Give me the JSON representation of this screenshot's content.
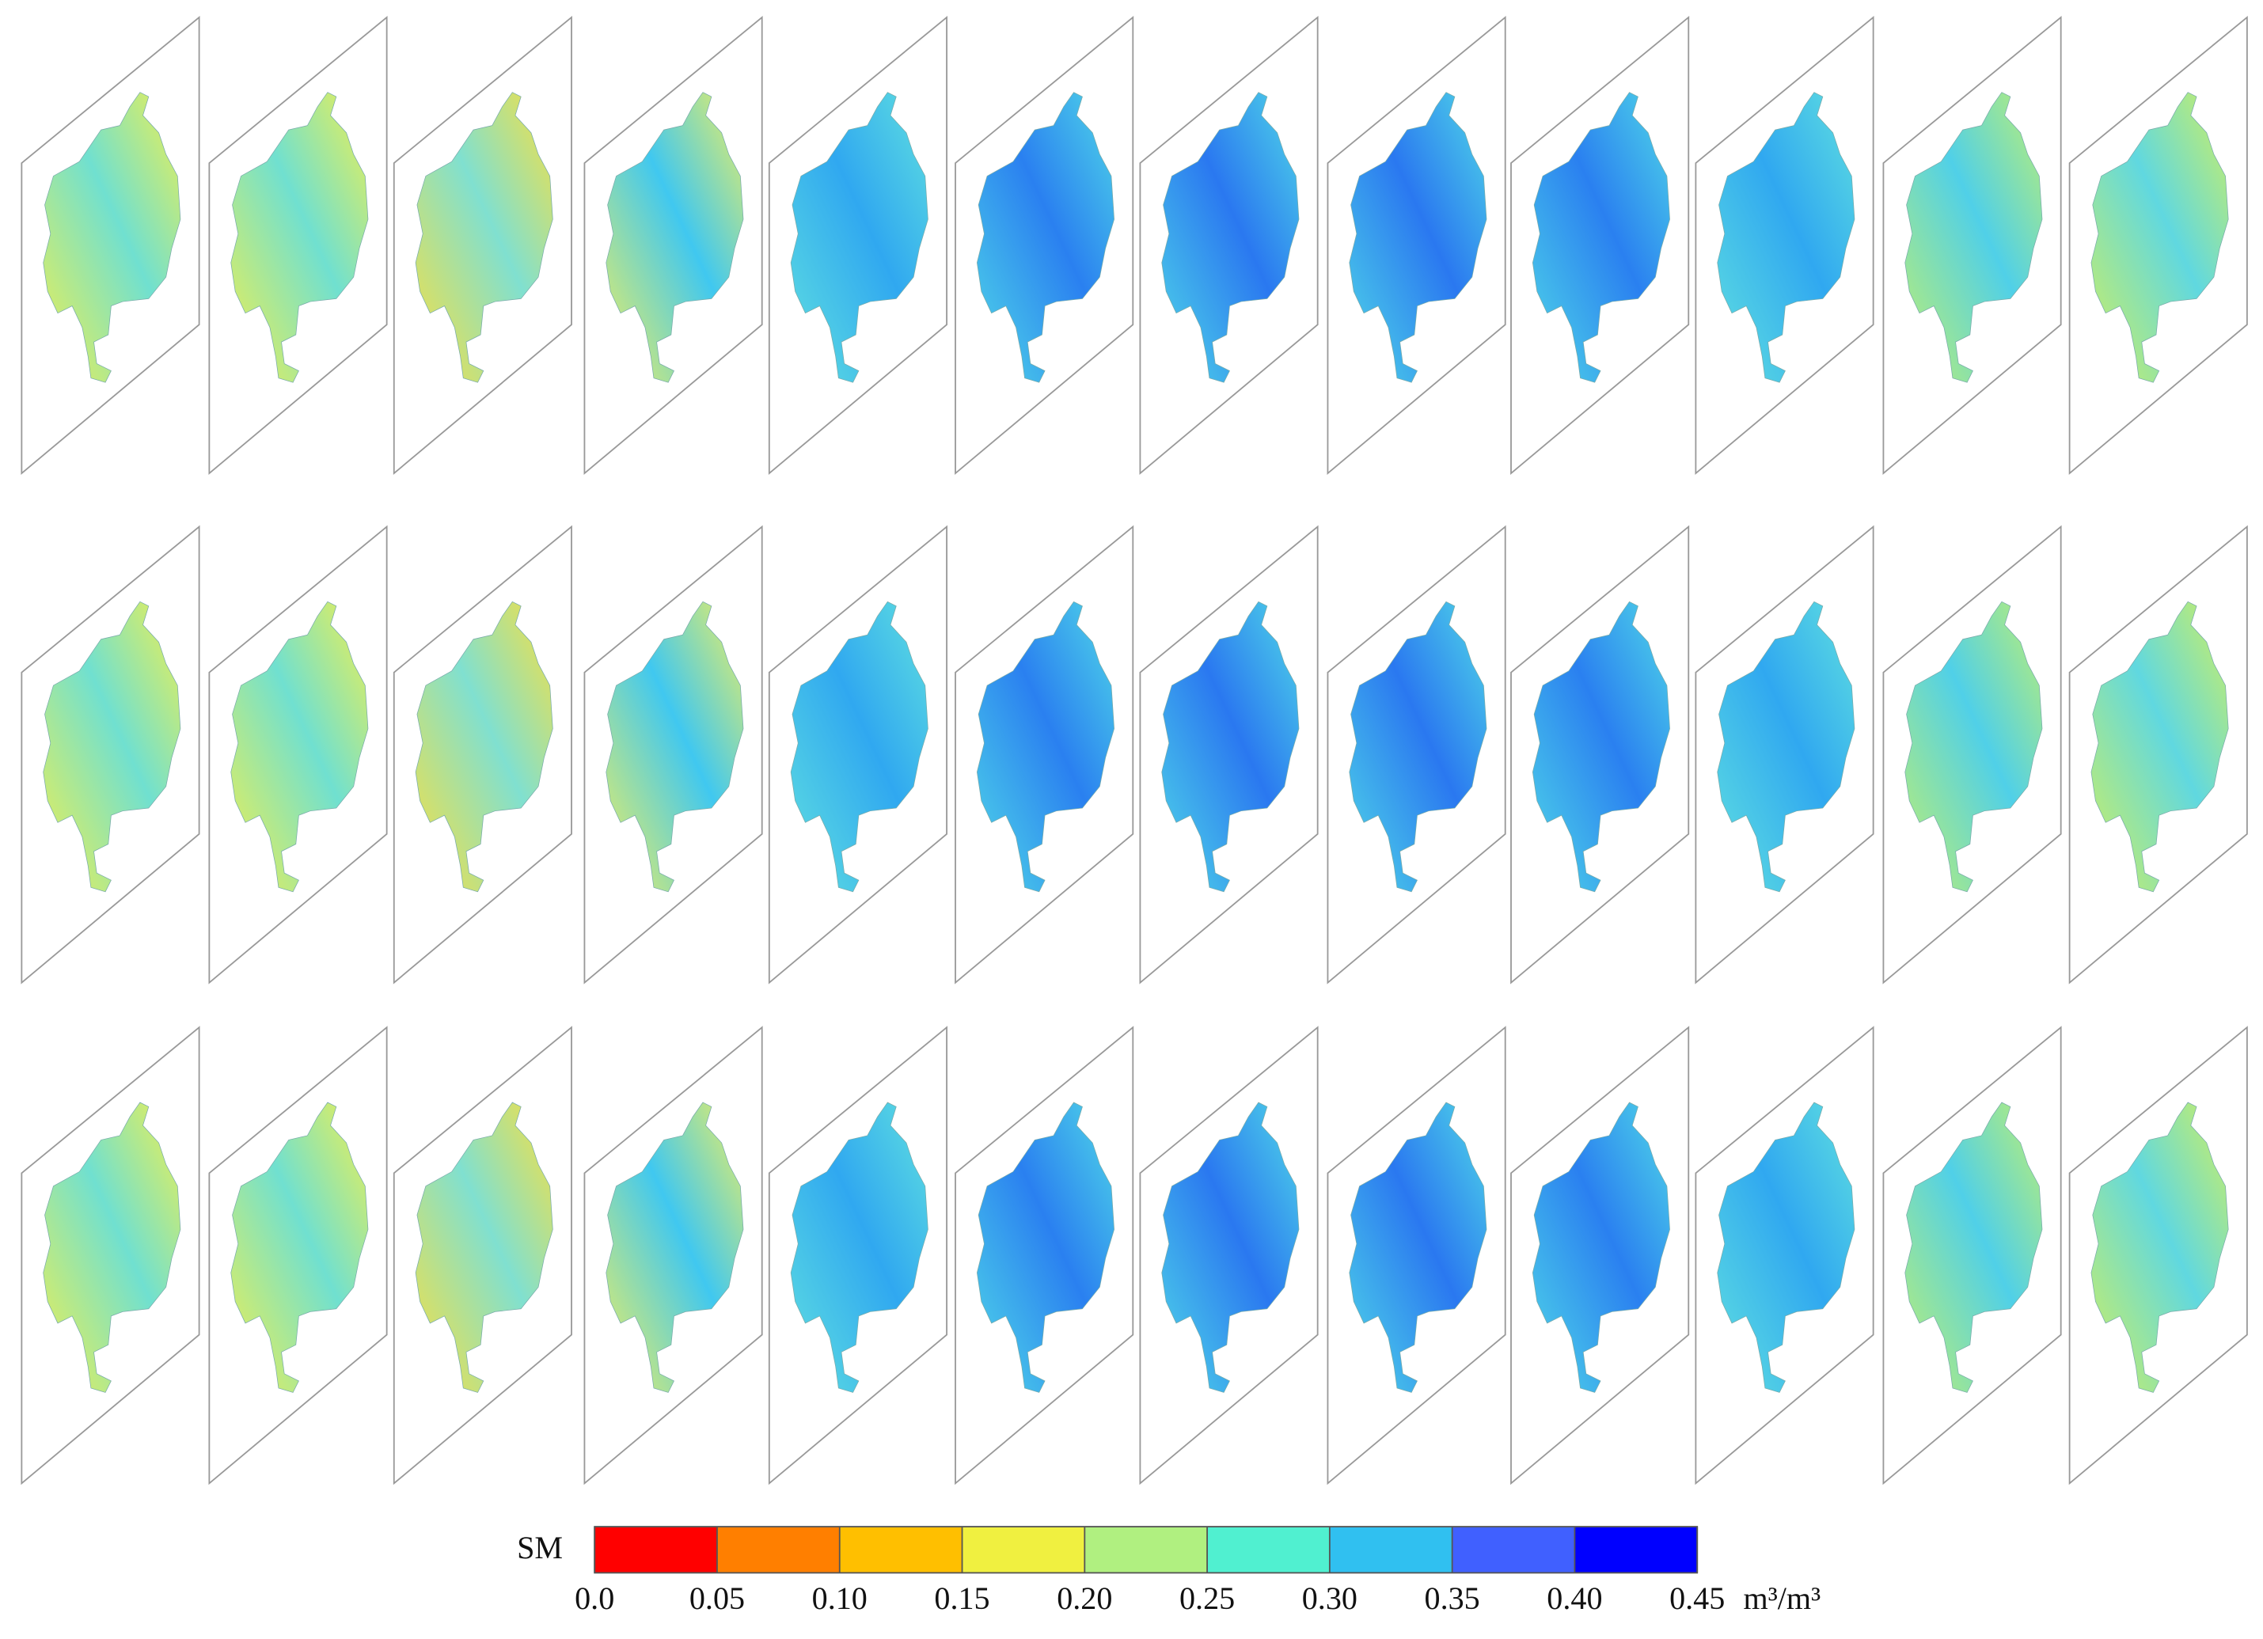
{
  "colorbar": {
    "title": "SM",
    "unit": "m³/m³",
    "ticks": [
      {
        "value": 0,
        "label": "0.0"
      },
      {
        "value": 0.05,
        "label": "0.05"
      },
      {
        "value": 0.1,
        "label": "0.10"
      },
      {
        "value": 0.15,
        "label": "0.15"
      },
      {
        "value": 0.2,
        "label": "0.20"
      },
      {
        "value": 0.25,
        "label": "0.25"
      },
      {
        "value": 0.3,
        "label": "0.30"
      },
      {
        "value": 0.35,
        "label": "0.35"
      },
      {
        "value": 0.4,
        "label": "0.40"
      },
      {
        "value": 0.45,
        "label": "0.45"
      }
    ],
    "colors": [
      "#ff0000",
      "#ff7f00",
      "#ffbf00",
      "#f0f040",
      "#b0f080",
      "#50f0d0",
      "#30c0f0",
      "#4060ff",
      "#0000ff"
    ]
  }
}
